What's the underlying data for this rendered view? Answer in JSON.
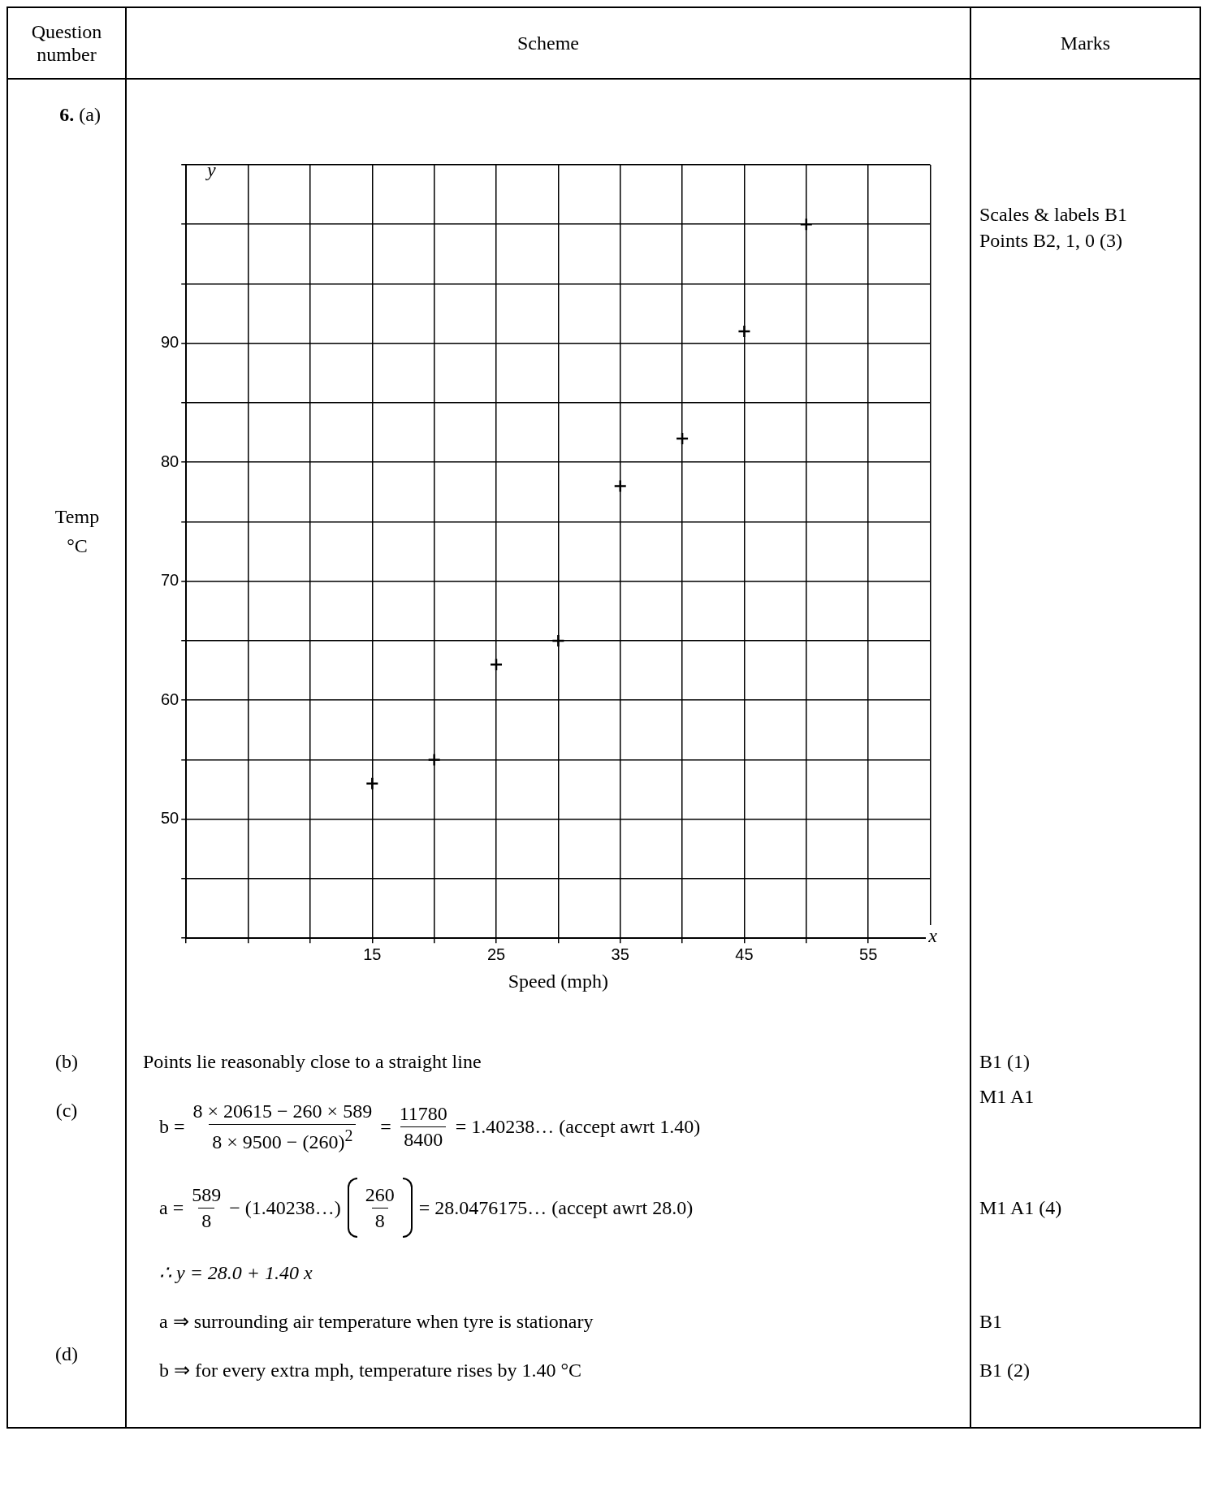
{
  "chart_data": {
    "type": "scatter",
    "xlabel": "Speed (mph)",
    "ylabel": "Temp °C",
    "x": [
      15,
      20,
      25,
      30,
      35,
      40,
      45,
      50
    ],
    "series": [
      {
        "color": "#000000",
        "values": [
          53,
          55,
          63,
          65,
          78,
          82,
          91,
          100
        ]
      }
    ],
    "marker": "cross",
    "grid": true,
    "xlim": [
      0,
      60
    ],
    "xticks": [
      {
        "value": 0,
        "label": null
      },
      {
        "value": 5,
        "label": null
      },
      {
        "value": 10,
        "label": null
      },
      15,
      {
        "value": 20,
        "label": null
      },
      25,
      {
        "value": 30,
        "label": null
      },
      35,
      {
        "value": 40,
        "label": null
      },
      45,
      {
        "value": 50,
        "label": null
      },
      55,
      {
        "value": 60,
        "label": null
      }
    ],
    "ylim": [
      40,
      105
    ],
    "yticks": [
      {
        "value": 40,
        "label": null
      },
      {
        "value": 45,
        "label": null
      },
      50,
      {
        "value": 55,
        "label": null
      },
      60,
      {
        "value": 65,
        "label": null
      },
      70,
      {
        "value": 75,
        "label": null
      },
      80,
      {
        "value": 85,
        "label": null
      },
      90,
      {
        "value": 95,
        "label": null
      },
      {
        "value": 100,
        "label": null
      },
      {
        "value": 105,
        "label": null
      }
    ],
    "annotations": [
      "Question number",
      "Scheme",
      "Marks",
      "6.",
      "(a)",
      "Scales & labels  B1",
      "Points B2, 1, 0  (3)",
      "(b)",
      "Points lie reasonably close to a straight line",
      "B1     (1)",
      "(c)",
      "b =",
      "8 × 20615 − 260 × 589",
      "8 × 9500 − (260)$^{2}$",
      "=",
      "11780",
      "8400",
      "= 1.40238…    (accept awrt 1.40)",
      "M1   A1",
      "a =",
      "589",
      "8",
      "− (1.40238…)",
      "260",
      "8",
      "=  28.0476175…    (accept awrt 28.0)",
      "M1 A1    (4)",
      "∴  y = 28.0 + 1.40 x",
      "a ⇒  surrounding air temperature when tyre is stationary",
      "b ⇒  for every extra mph, temperature rises by 1.40 °C",
      "B1",
      "B1     (2)",
      "(d)",
      "x",
      "y"
    ]
  }
}
